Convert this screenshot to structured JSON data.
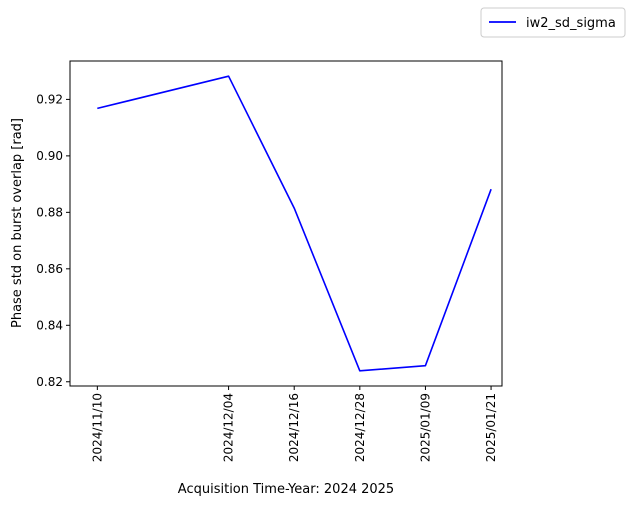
{
  "chart_data": {
    "type": "line",
    "title": "",
    "xlabel": "Acquisition Time-Year: 2024 2025",
    "ylabel": "Phase std on burst overlap [rad]",
    "x": [
      "2024/11/10",
      "2024/12/04",
      "2024/12/16",
      "2024/12/28",
      "2025/01/09",
      "2025/01/21"
    ],
    "series": [
      {
        "name": "iw2_sd_sigma",
        "color": "#0000ff",
        "values": [
          0.9168,
          0.9282,
          0.8815,
          0.8239,
          0.8257,
          0.8882
        ]
      }
    ],
    "yticks": [
      "0.82",
      "0.84",
      "0.86",
      "0.88",
      "0.90",
      "0.92"
    ],
    "ylim": [
      0.8185,
      0.9336
    ],
    "xlim": [
      "2024/11/05",
      "2025/01/23"
    ],
    "grid": false,
    "legend_position": "top-right, outside plot"
  }
}
